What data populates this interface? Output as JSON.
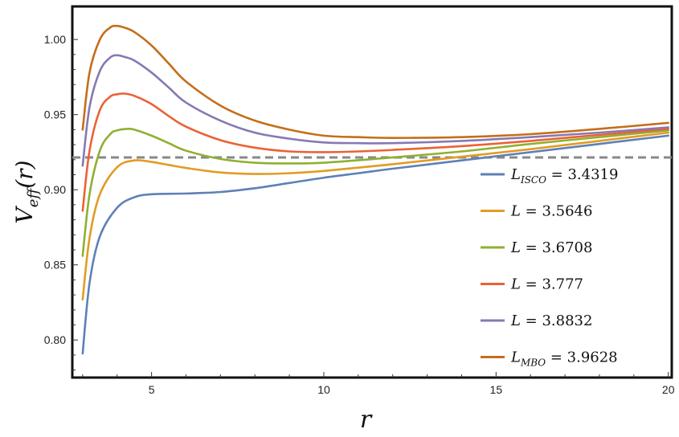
{
  "chart_data": {
    "type": "line",
    "title": "",
    "xlabel": "r",
    "ylabel": "V_eff(r)",
    "xlim": [
      2.7,
      20.1
    ],
    "ylim": [
      0.775,
      1.022
    ],
    "xticks": [
      5,
      10,
      15,
      20
    ],
    "xtick_labels": [
      "5",
      "10",
      "15",
      "20"
    ],
    "yticks": [
      0.8,
      0.85,
      0.9,
      0.95,
      1.0
    ],
    "ytick_labels": [
      "0.80",
      "0.85",
      "0.90",
      "0.95",
      "1.00"
    ],
    "reference_line": {
      "y": 0.9215,
      "style": "dashed",
      "color": "#888888"
    },
    "legend_position": "right",
    "series": [
      {
        "name": "L_ISCO = 3.4319",
        "color": "#5e81b5",
        "x": [
          3.0,
          3.2,
          3.5,
          4.0,
          4.5,
          5.0,
          6.0,
          7.0,
          8.0,
          9.0,
          10.0,
          11.0,
          12.0,
          14.0,
          16.0,
          18.0,
          20.0
        ],
        "y": [
          0.791,
          0.838,
          0.869,
          0.888,
          0.895,
          0.897,
          0.8975,
          0.8985,
          0.901,
          0.9045,
          0.908,
          0.911,
          0.914,
          0.9195,
          0.925,
          0.9305,
          0.936
        ]
      },
      {
        "name": "L = 3.5646",
        "color": "#e19c24",
        "x": [
          3.0,
          3.2,
          3.5,
          4.0,
          4.5,
          5.0,
          5.5,
          6.0,
          7.0,
          8.0,
          9.0,
          10.0,
          12.0,
          14.0,
          16.0,
          18.0,
          20.0
        ],
        "y": [
          0.827,
          0.868,
          0.897,
          0.915,
          0.9195,
          0.9185,
          0.9165,
          0.9145,
          0.9115,
          0.9105,
          0.911,
          0.9125,
          0.917,
          0.922,
          0.927,
          0.9325,
          0.938
        ]
      },
      {
        "name": "L = 3.6708",
        "color": "#8fb032",
        "x": [
          3.0,
          3.2,
          3.5,
          3.8,
          4.0,
          4.3,
          4.5,
          5.0,
          5.5,
          6.0,
          7.0,
          8.0,
          9.0,
          10.0,
          12.0,
          14.0,
          16.0,
          18.0,
          20.0
        ],
        "y": [
          0.856,
          0.897,
          0.926,
          0.937,
          0.9395,
          0.9405,
          0.94,
          0.936,
          0.931,
          0.926,
          0.9205,
          0.918,
          0.9175,
          0.918,
          0.9215,
          0.9255,
          0.9305,
          0.935,
          0.9395
        ]
      },
      {
        "name": "L = 3.777",
        "color": "#eb6235",
        "x": [
          3.0,
          3.2,
          3.5,
          3.8,
          4.0,
          4.2,
          4.5,
          5.0,
          5.5,
          6.0,
          7.0,
          8.0,
          9.0,
          10.0,
          11.0,
          12.0,
          14.0,
          16.0,
          18.0,
          20.0
        ],
        "y": [
          0.886,
          0.926,
          0.953,
          0.962,
          0.9635,
          0.964,
          0.9625,
          0.957,
          0.949,
          0.942,
          0.933,
          0.928,
          0.9255,
          0.925,
          0.9255,
          0.9265,
          0.929,
          0.9325,
          0.9365,
          0.9405
        ]
      },
      {
        "name": "L = 3.8832",
        "color": "#8778b3",
        "x": [
          3.0,
          3.2,
          3.5,
          3.8,
          4.0,
          4.2,
          4.5,
          5.0,
          5.5,
          6.0,
          7.0,
          8.0,
          9.0,
          10.0,
          11.0,
          12.0,
          14.0,
          16.0,
          18.0,
          20.0
        ],
        "y": [
          0.916,
          0.955,
          0.979,
          0.988,
          0.9895,
          0.9885,
          0.986,
          0.978,
          0.968,
          0.958,
          0.946,
          0.938,
          0.934,
          0.9315,
          0.931,
          0.931,
          0.9325,
          0.935,
          0.938,
          0.9415
        ]
      },
      {
        "name": "L_MBO = 3.9628",
        "color": "#c56e1a",
        "x": [
          3.0,
          3.2,
          3.5,
          3.8,
          4.0,
          4.2,
          4.5,
          5.0,
          5.5,
          6.0,
          7.0,
          8.0,
          9.0,
          10.0,
          11.0,
          12.0,
          14.0,
          16.0,
          18.0,
          20.0
        ],
        "y": [
          0.94,
          0.978,
          1.0,
          1.008,
          1.009,
          1.008,
          1.005,
          0.996,
          0.984,
          0.972,
          0.956,
          0.946,
          0.94,
          0.936,
          0.935,
          0.9345,
          0.935,
          0.937,
          0.9405,
          0.9445
        ]
      }
    ],
    "legend": [
      {
        "main": "L",
        "sub": "ISCO",
        "value": " = 3.4319"
      },
      {
        "main": "L",
        "sub": "",
        "value": " = 3.5646"
      },
      {
        "main": "L",
        "sub": "",
        "value": " = 3.6708"
      },
      {
        "main": "L",
        "sub": "",
        "value": " = 3.777"
      },
      {
        "main": "L",
        "sub": "",
        "value": " = 3.8832"
      },
      {
        "main": "L",
        "sub": "MBO",
        "value": " = 3.9628"
      }
    ]
  },
  "labels": {
    "ylabel_main": "V",
    "ylabel_sub": "eff",
    "ylabel_arg": "(r)",
    "xlabel": "r"
  }
}
